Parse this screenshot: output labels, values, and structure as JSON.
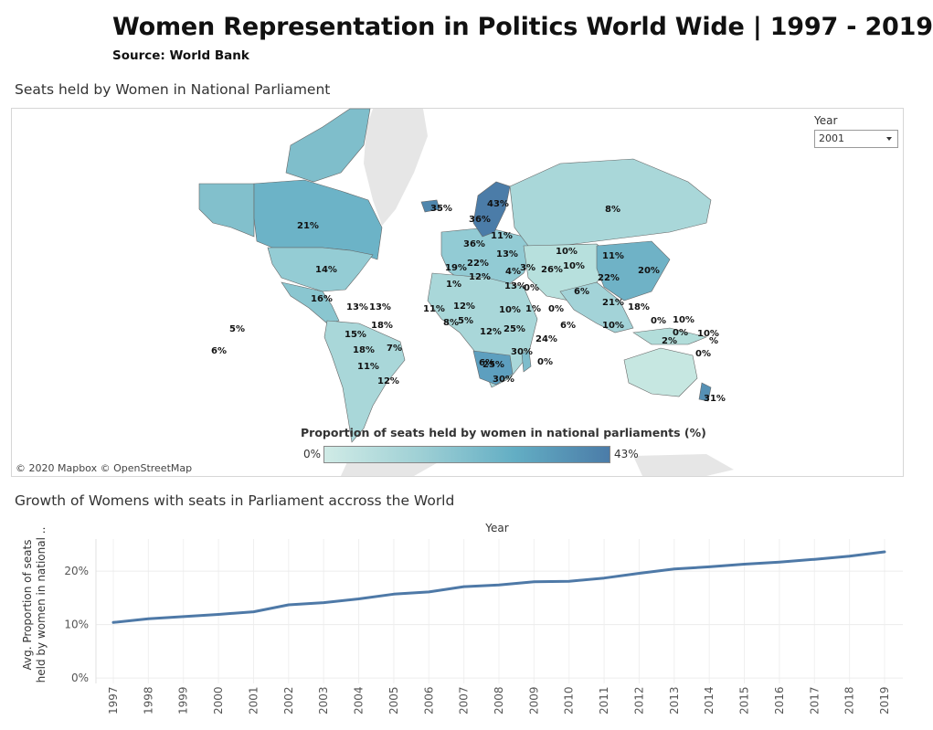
{
  "header": {
    "title": "Women Representation in Politics World Wide | 1997 - 2019",
    "source": "Source: World Bank"
  },
  "map": {
    "title": "Seats held by Women in National Parliament",
    "filter_label": "Year",
    "selected_year": "2001",
    "legend_title": "Proportion of seats held by women in national parliaments (%)",
    "legend_min": "0%",
    "legend_max": "43%",
    "attribution": "© 2020 Mapbox © OpenStreetMap",
    "labels": [
      "43%",
      "35%",
      "36%",
      "8%",
      "11%",
      "36%",
      "21%",
      "13%",
      "10%",
      "11%",
      "19%",
      "22%",
      "3%",
      "26%",
      "10%",
      "22%",
      "20%",
      "4%",
      "14%",
      "12%",
      "1%",
      "13%",
      "0%",
      "6%",
      "21%",
      "18%",
      "16%",
      "13%",
      "13%",
      "11%",
      "12%",
      "1%",
      "10%",
      "0%",
      "0%",
      "10%",
      "18%",
      "8%",
      "5%",
      "10%",
      "5%",
      "15%",
      "12%",
      "25%",
      "6%",
      "10%",
      "0%",
      "%",
      "24%",
      "2%",
      "0%",
      "6%",
      "7%",
      "18%",
      "30%",
      "0%",
      "6%",
      "11%",
      "25%",
      "12%",
      "30%",
      "31%"
    ]
  },
  "line": {
    "title": "Growth of Womens with seats in Parliament accross the World",
    "x_title": "Year",
    "y_title_1": "Avg. Proportion of seats",
    "y_title_2": "held by women in national .."
  },
  "colors": {
    "line": "#4e79a7",
    "land": "#e6e6e6",
    "border": "#666666"
  },
  "chart_data": {
    "type": "line",
    "title": "Growth of Womens with seats in Parliament accross the World",
    "xlabel": "Year",
    "ylabel": "Avg. Proportion of seats held by women in national ..",
    "x": [
      "1997",
      "1998",
      "1999",
      "2000",
      "2001",
      "2002",
      "2003",
      "2004",
      "2005",
      "2006",
      "2007",
      "2008",
      "2009",
      "2010",
      "2011",
      "2012",
      "2013",
      "2014",
      "2015",
      "2016",
      "2017",
      "2018",
      "2019"
    ],
    "y": [
      10.4,
      11.1,
      11.5,
      11.9,
      12.4,
      13.7,
      14.1,
      14.8,
      15.7,
      16.1,
      17.1,
      17.4,
      18.0,
      18.1,
      18.7,
      19.6,
      20.4,
      20.8,
      21.3,
      21.7,
      22.2,
      22.8,
      23.6
    ],
    "yticks": [
      "0%",
      "10%",
      "20%"
    ],
    "ytick_values": [
      0,
      10,
      20
    ],
    "ylim": [
      -1,
      26
    ],
    "grid": true
  }
}
